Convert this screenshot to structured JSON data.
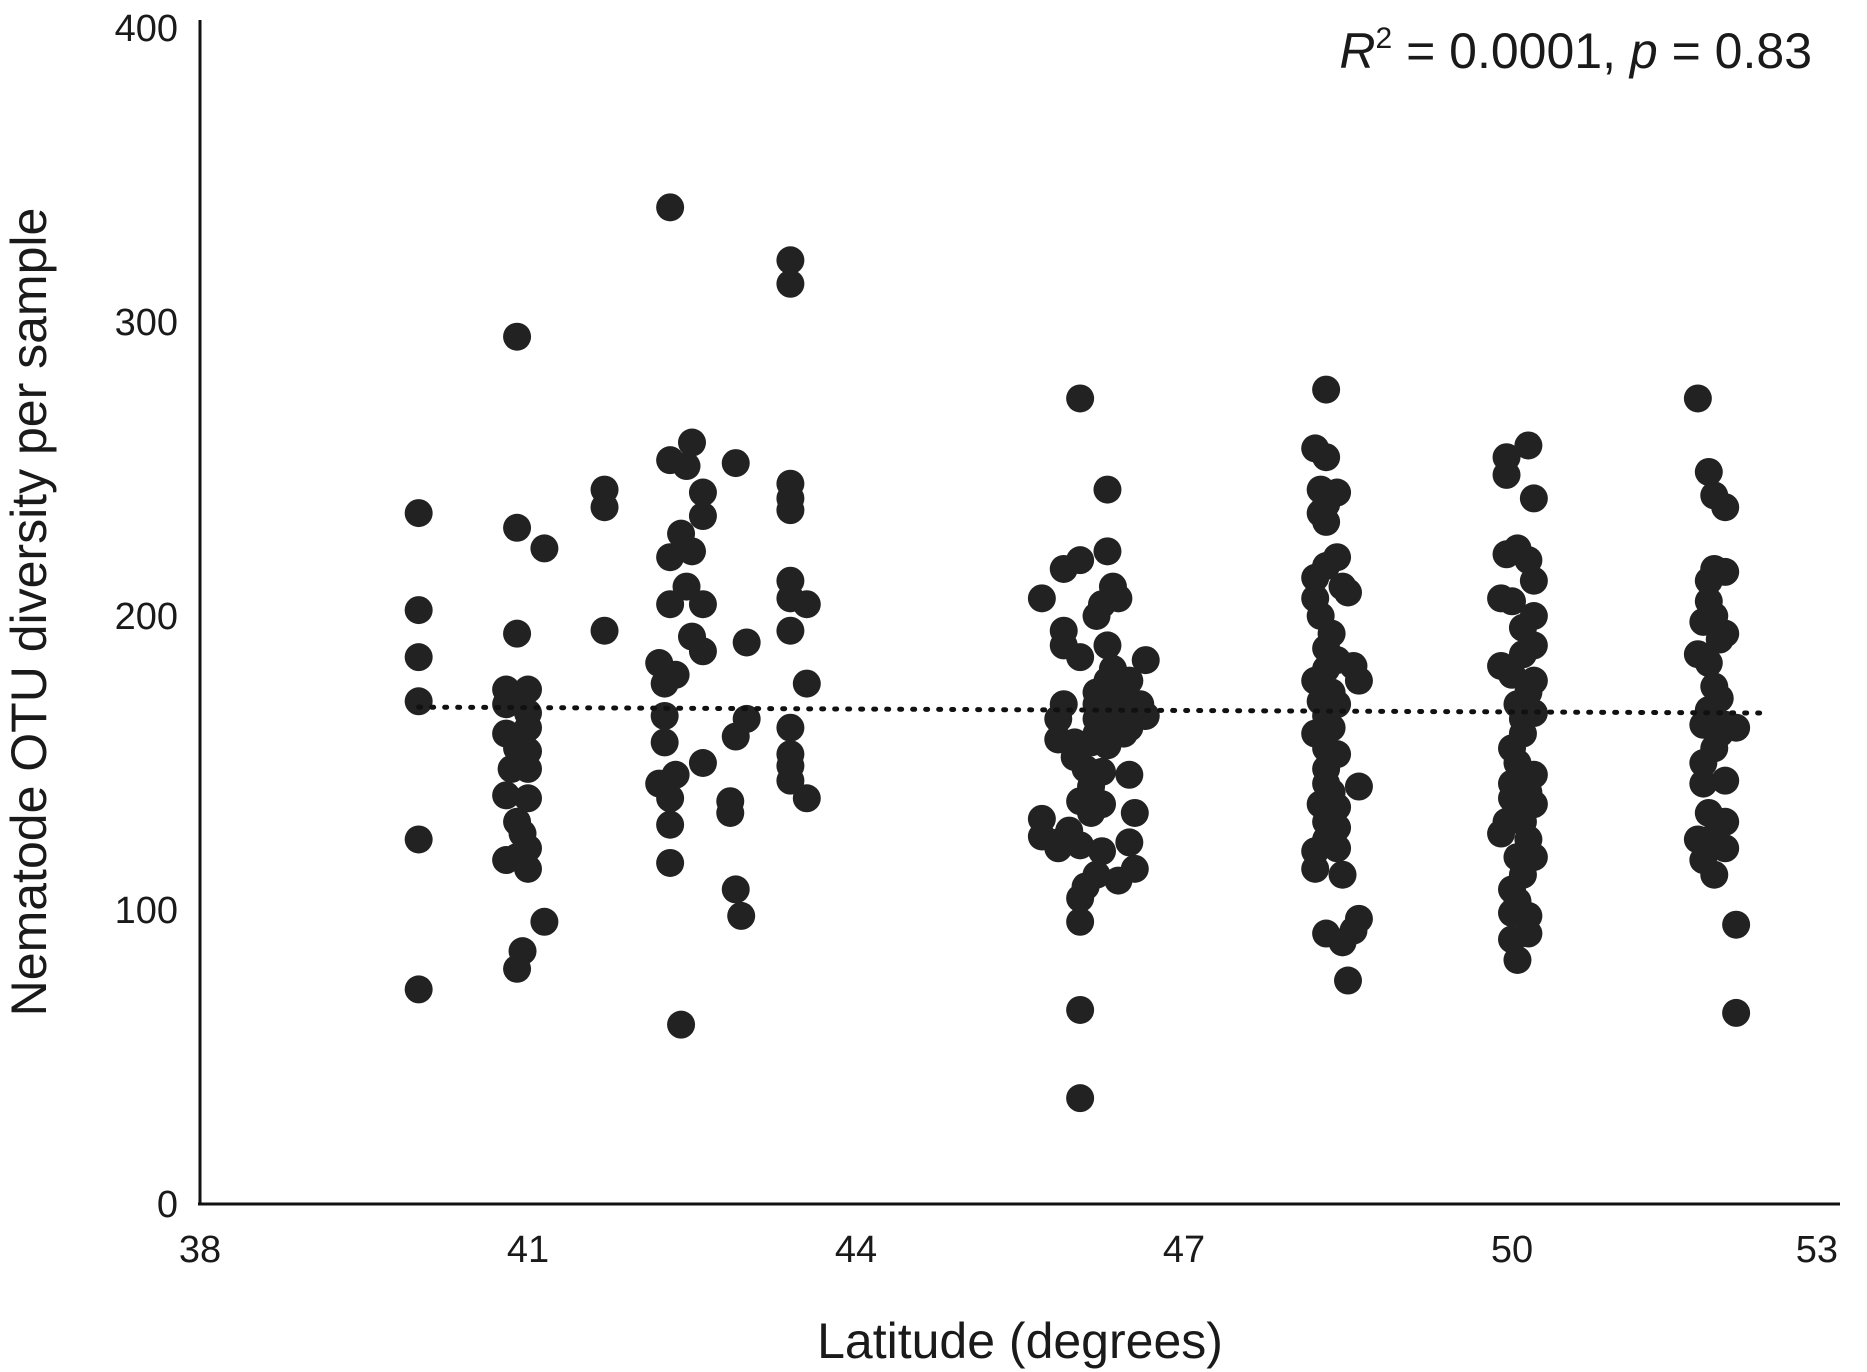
{
  "chart_data": {
    "type": "scatter",
    "title": "",
    "xlabel": "Latitude (degrees)",
    "ylabel": "Nematode OTU diversity per sample",
    "xlim": [
      38,
      53
    ],
    "ylim": [
      0,
      400
    ],
    "xticks": [
      "38",
      "41",
      "44",
      "47",
      "50",
      "53"
    ],
    "yticks": [
      "0",
      "100",
      "200",
      "300",
      "400"
    ],
    "grid": false,
    "legend": "none",
    "annotation": {
      "r2_label": "R",
      "r2_sup": "2",
      "r2_value": " = 0.0001, ",
      "p_label": "p",
      "p_value": " = 0.83"
    },
    "trendline": {
      "style": "dotted",
      "x": [
        40.0,
        52.3
      ],
      "y": [
        169,
        167
      ]
    },
    "marker_color": "#222222",
    "points": [
      {
        "x": 40.0,
        "y": 235
      },
      {
        "x": 40.0,
        "y": 202
      },
      {
        "x": 40.0,
        "y": 186
      },
      {
        "x": 40.0,
        "y": 171
      },
      {
        "x": 40.0,
        "y": 124
      },
      {
        "x": 40.0,
        "y": 73
      },
      {
        "x": 40.8,
        "y": 175
      },
      {
        "x": 40.8,
        "y": 170
      },
      {
        "x": 40.8,
        "y": 160
      },
      {
        "x": 40.85,
        "y": 148
      },
      {
        "x": 40.8,
        "y": 139
      },
      {
        "x": 40.8,
        "y": 117
      },
      {
        "x": 40.9,
        "y": 295
      },
      {
        "x": 40.9,
        "y": 230
      },
      {
        "x": 40.9,
        "y": 194
      },
      {
        "x": 40.9,
        "y": 172
      },
      {
        "x": 40.9,
        "y": 155
      },
      {
        "x": 40.9,
        "y": 130
      },
      {
        "x": 40.9,
        "y": 118
      },
      {
        "x": 40.9,
        "y": 80
      },
      {
        "x": 40.95,
        "y": 86
      },
      {
        "x": 40.95,
        "y": 126
      },
      {
        "x": 41.0,
        "y": 175
      },
      {
        "x": 41.0,
        "y": 167
      },
      {
        "x": 41.0,
        "y": 162
      },
      {
        "x": 41.0,
        "y": 154
      },
      {
        "x": 41.0,
        "y": 148
      },
      {
        "x": 41.0,
        "y": 138
      },
      {
        "x": 41.0,
        "y": 121
      },
      {
        "x": 41.0,
        "y": 114
      },
      {
        "x": 41.15,
        "y": 223
      },
      {
        "x": 41.15,
        "y": 96
      },
      {
        "x": 41.7,
        "y": 243
      },
      {
        "x": 41.7,
        "y": 237
      },
      {
        "x": 41.7,
        "y": 195
      },
      {
        "x": 42.2,
        "y": 184
      },
      {
        "x": 42.2,
        "y": 143
      },
      {
        "x": 42.25,
        "y": 177
      },
      {
        "x": 42.25,
        "y": 166
      },
      {
        "x": 42.25,
        "y": 157
      },
      {
        "x": 42.3,
        "y": 339
      },
      {
        "x": 42.3,
        "y": 253
      },
      {
        "x": 42.3,
        "y": 220
      },
      {
        "x": 42.3,
        "y": 204
      },
      {
        "x": 42.3,
        "y": 138
      },
      {
        "x": 42.3,
        "y": 129
      },
      {
        "x": 42.3,
        "y": 116
      },
      {
        "x": 42.35,
        "y": 180
      },
      {
        "x": 42.35,
        "y": 146
      },
      {
        "x": 42.4,
        "y": 228
      },
      {
        "x": 42.4,
        "y": 61
      },
      {
        "x": 42.45,
        "y": 251
      },
      {
        "x": 42.45,
        "y": 210
      },
      {
        "x": 42.5,
        "y": 259
      },
      {
        "x": 42.5,
        "y": 222
      },
      {
        "x": 42.5,
        "y": 193
      },
      {
        "x": 42.6,
        "y": 242
      },
      {
        "x": 42.6,
        "y": 234
      },
      {
        "x": 42.6,
        "y": 204
      },
      {
        "x": 42.6,
        "y": 188
      },
      {
        "x": 42.6,
        "y": 150
      },
      {
        "x": 42.85,
        "y": 133
      },
      {
        "x": 42.85,
        "y": 137
      },
      {
        "x": 42.9,
        "y": 252
      },
      {
        "x": 42.9,
        "y": 159
      },
      {
        "x": 42.9,
        "y": 107
      },
      {
        "x": 42.95,
        "y": 98
      },
      {
        "x": 43.0,
        "y": 191
      },
      {
        "x": 43.0,
        "y": 165
      },
      {
        "x": 43.4,
        "y": 321
      },
      {
        "x": 43.4,
        "y": 313
      },
      {
        "x": 43.4,
        "y": 245
      },
      {
        "x": 43.4,
        "y": 240
      },
      {
        "x": 43.4,
        "y": 236
      },
      {
        "x": 43.4,
        "y": 212
      },
      {
        "x": 43.4,
        "y": 206
      },
      {
        "x": 43.4,
        "y": 195
      },
      {
        "x": 43.4,
        "y": 162
      },
      {
        "x": 43.4,
        "y": 153
      },
      {
        "x": 43.4,
        "y": 149
      },
      {
        "x": 43.4,
        "y": 144
      },
      {
        "x": 43.55,
        "y": 204
      },
      {
        "x": 43.55,
        "y": 177
      },
      {
        "x": 43.55,
        "y": 138
      },
      {
        "x": 45.7,
        "y": 206
      },
      {
        "x": 45.7,
        "y": 131
      },
      {
        "x": 45.7,
        "y": 125
      },
      {
        "x": 45.85,
        "y": 123
      },
      {
        "x": 45.85,
        "y": 121
      },
      {
        "x": 45.85,
        "y": 165
      },
      {
        "x": 45.85,
        "y": 158
      },
      {
        "x": 45.9,
        "y": 216
      },
      {
        "x": 45.9,
        "y": 195
      },
      {
        "x": 45.9,
        "y": 190
      },
      {
        "x": 45.9,
        "y": 170
      },
      {
        "x": 45.95,
        "y": 127
      },
      {
        "x": 46.0,
        "y": 157
      },
      {
        "x": 46.0,
        "y": 152
      },
      {
        "x": 46.05,
        "y": 274
      },
      {
        "x": 46.05,
        "y": 219
      },
      {
        "x": 46.05,
        "y": 186
      },
      {
        "x": 46.05,
        "y": 137
      },
      {
        "x": 46.05,
        "y": 122
      },
      {
        "x": 46.05,
        "y": 104
      },
      {
        "x": 46.05,
        "y": 96
      },
      {
        "x": 46.05,
        "y": 66
      },
      {
        "x": 46.05,
        "y": 36
      },
      {
        "x": 46.1,
        "y": 148
      },
      {
        "x": 46.1,
        "y": 108
      },
      {
        "x": 46.15,
        "y": 157
      },
      {
        "x": 46.15,
        "y": 142
      },
      {
        "x": 46.15,
        "y": 133
      },
      {
        "x": 46.2,
        "y": 200
      },
      {
        "x": 46.2,
        "y": 174
      },
      {
        "x": 46.2,
        "y": 170
      },
      {
        "x": 46.2,
        "y": 165
      },
      {
        "x": 46.2,
        "y": 160
      },
      {
        "x": 46.2,
        "y": 112
      },
      {
        "x": 46.25,
        "y": 204
      },
      {
        "x": 46.25,
        "y": 147
      },
      {
        "x": 46.25,
        "y": 136
      },
      {
        "x": 46.25,
        "y": 120
      },
      {
        "x": 46.3,
        "y": 243
      },
      {
        "x": 46.3,
        "y": 222
      },
      {
        "x": 46.3,
        "y": 190
      },
      {
        "x": 46.3,
        "y": 178
      },
      {
        "x": 46.3,
        "y": 168
      },
      {
        "x": 46.3,
        "y": 156
      },
      {
        "x": 46.35,
        "y": 210
      },
      {
        "x": 46.35,
        "y": 182
      },
      {
        "x": 46.35,
        "y": 162
      },
      {
        "x": 46.4,
        "y": 206
      },
      {
        "x": 46.4,
        "y": 176
      },
      {
        "x": 46.4,
        "y": 110
      },
      {
        "x": 46.45,
        "y": 172
      },
      {
        "x": 46.45,
        "y": 160
      },
      {
        "x": 46.5,
        "y": 178
      },
      {
        "x": 46.5,
        "y": 166
      },
      {
        "x": 46.5,
        "y": 162
      },
      {
        "x": 46.5,
        "y": 146
      },
      {
        "x": 46.5,
        "y": 123
      },
      {
        "x": 46.55,
        "y": 133
      },
      {
        "x": 46.55,
        "y": 114
      },
      {
        "x": 46.6,
        "y": 170
      },
      {
        "x": 46.65,
        "y": 185
      },
      {
        "x": 46.65,
        "y": 166
      },
      {
        "x": 48.2,
        "y": 257
      },
      {
        "x": 48.2,
        "y": 213
      },
      {
        "x": 48.2,
        "y": 206
      },
      {
        "x": 48.2,
        "y": 178
      },
      {
        "x": 48.2,
        "y": 160
      },
      {
        "x": 48.2,
        "y": 120
      },
      {
        "x": 48.2,
        "y": 114
      },
      {
        "x": 48.25,
        "y": 243
      },
      {
        "x": 48.25,
        "y": 235
      },
      {
        "x": 48.25,
        "y": 200
      },
      {
        "x": 48.25,
        "y": 171
      },
      {
        "x": 48.25,
        "y": 136
      },
      {
        "x": 48.3,
        "y": 277
      },
      {
        "x": 48.3,
        "y": 254
      },
      {
        "x": 48.3,
        "y": 238
      },
      {
        "x": 48.3,
        "y": 232
      },
      {
        "x": 48.3,
        "y": 217
      },
      {
        "x": 48.3,
        "y": 189
      },
      {
        "x": 48.3,
        "y": 182
      },
      {
        "x": 48.3,
        "y": 166
      },
      {
        "x": 48.3,
        "y": 155
      },
      {
        "x": 48.3,
        "y": 148
      },
      {
        "x": 48.3,
        "y": 143
      },
      {
        "x": 48.3,
        "y": 130
      },
      {
        "x": 48.3,
        "y": 124
      },
      {
        "x": 48.3,
        "y": 92
      },
      {
        "x": 48.35,
        "y": 194
      },
      {
        "x": 48.35,
        "y": 174
      },
      {
        "x": 48.35,
        "y": 162
      },
      {
        "x": 48.35,
        "y": 140
      },
      {
        "x": 48.4,
        "y": 242
      },
      {
        "x": 48.4,
        "y": 220
      },
      {
        "x": 48.4,
        "y": 185
      },
      {
        "x": 48.4,
        "y": 170
      },
      {
        "x": 48.4,
        "y": 153
      },
      {
        "x": 48.4,
        "y": 135
      },
      {
        "x": 48.4,
        "y": 128
      },
      {
        "x": 48.4,
        "y": 121
      },
      {
        "x": 48.45,
        "y": 210
      },
      {
        "x": 48.45,
        "y": 112
      },
      {
        "x": 48.45,
        "y": 89
      },
      {
        "x": 48.5,
        "y": 208
      },
      {
        "x": 48.5,
        "y": 76
      },
      {
        "x": 48.55,
        "y": 183
      },
      {
        "x": 48.55,
        "y": 93
      },
      {
        "x": 48.6,
        "y": 178
      },
      {
        "x": 48.6,
        "y": 142
      },
      {
        "x": 48.6,
        "y": 97
      },
      {
        "x": 49.9,
        "y": 206
      },
      {
        "x": 49.9,
        "y": 183
      },
      {
        "x": 49.9,
        "y": 126
      },
      {
        "x": 49.95,
        "y": 254
      },
      {
        "x": 49.95,
        "y": 248
      },
      {
        "x": 49.95,
        "y": 221
      },
      {
        "x": 49.95,
        "y": 130
      },
      {
        "x": 50.0,
        "y": 205
      },
      {
        "x": 50.0,
        "y": 180
      },
      {
        "x": 50.0,
        "y": 155
      },
      {
        "x": 50.0,
        "y": 143
      },
      {
        "x": 50.0,
        "y": 138
      },
      {
        "x": 50.0,
        "y": 107
      },
      {
        "x": 50.0,
        "y": 99
      },
      {
        "x": 50.0,
        "y": 90
      },
      {
        "x": 50.05,
        "y": 223
      },
      {
        "x": 50.05,
        "y": 170
      },
      {
        "x": 50.05,
        "y": 150
      },
      {
        "x": 50.05,
        "y": 134
      },
      {
        "x": 50.05,
        "y": 118
      },
      {
        "x": 50.05,
        "y": 103
      },
      {
        "x": 50.05,
        "y": 83
      },
      {
        "x": 50.1,
        "y": 196
      },
      {
        "x": 50.1,
        "y": 187
      },
      {
        "x": 50.1,
        "y": 165
      },
      {
        "x": 50.1,
        "y": 160
      },
      {
        "x": 50.1,
        "y": 145
      },
      {
        "x": 50.1,
        "y": 130
      },
      {
        "x": 50.1,
        "y": 112
      },
      {
        "x": 50.15,
        "y": 258
      },
      {
        "x": 50.15,
        "y": 219
      },
      {
        "x": 50.15,
        "y": 174
      },
      {
        "x": 50.15,
        "y": 140
      },
      {
        "x": 50.15,
        "y": 124
      },
      {
        "x": 50.15,
        "y": 98
      },
      {
        "x": 50.15,
        "y": 92
      },
      {
        "x": 50.2,
        "y": 240
      },
      {
        "x": 50.2,
        "y": 212
      },
      {
        "x": 50.2,
        "y": 200
      },
      {
        "x": 50.2,
        "y": 190
      },
      {
        "x": 50.2,
        "y": 178
      },
      {
        "x": 50.2,
        "y": 167
      },
      {
        "x": 50.2,
        "y": 146
      },
      {
        "x": 50.2,
        "y": 136
      },
      {
        "x": 50.2,
        "y": 118
      },
      {
        "x": 51.7,
        "y": 274
      },
      {
        "x": 51.7,
        "y": 187
      },
      {
        "x": 51.7,
        "y": 124
      },
      {
        "x": 51.75,
        "y": 198
      },
      {
        "x": 51.75,
        "y": 163
      },
      {
        "x": 51.75,
        "y": 150
      },
      {
        "x": 51.75,
        "y": 143
      },
      {
        "x": 51.75,
        "y": 117
      },
      {
        "x": 51.8,
        "y": 249
      },
      {
        "x": 51.8,
        "y": 212
      },
      {
        "x": 51.8,
        "y": 205
      },
      {
        "x": 51.8,
        "y": 184
      },
      {
        "x": 51.8,
        "y": 168
      },
      {
        "x": 51.8,
        "y": 133
      },
      {
        "x": 51.85,
        "y": 241
      },
      {
        "x": 51.85,
        "y": 216
      },
      {
        "x": 51.85,
        "y": 200
      },
      {
        "x": 51.85,
        "y": 176
      },
      {
        "x": 51.85,
        "y": 155
      },
      {
        "x": 51.85,
        "y": 125
      },
      {
        "x": 51.85,
        "y": 112
      },
      {
        "x": 51.9,
        "y": 192
      },
      {
        "x": 51.9,
        "y": 172
      },
      {
        "x": 51.9,
        "y": 160
      },
      {
        "x": 51.95,
        "y": 237
      },
      {
        "x": 51.95,
        "y": 215
      },
      {
        "x": 51.95,
        "y": 194
      },
      {
        "x": 51.95,
        "y": 163
      },
      {
        "x": 51.95,
        "y": 144
      },
      {
        "x": 51.95,
        "y": 130
      },
      {
        "x": 51.95,
        "y": 121
      },
      {
        "x": 52.05,
        "y": 162
      },
      {
        "x": 52.05,
        "y": 95
      },
      {
        "x": 52.05,
        "y": 65
      }
    ]
  }
}
